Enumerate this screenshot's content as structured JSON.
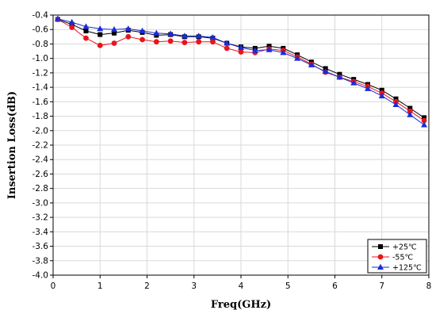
{
  "chart_data": {
    "type": "line",
    "xlabel": "Freq(GHz)",
    "ylabel": "Insertion Loss(dB)",
    "xlim": [
      0,
      8
    ],
    "ylim": [
      -4.0,
      -0.4
    ],
    "x_ticks": [
      "0",
      "1",
      "2",
      "3",
      "4",
      "5",
      "6",
      "7",
      "8"
    ],
    "y_ticks": [
      "-0.4",
      "-0.6",
      "-0.8",
      "-1.0",
      "-1.2",
      "-1.4",
      "-1.6",
      "-1.8",
      "-2.0",
      "-2.2",
      "-2.4",
      "-2.6",
      "-2.8",
      "-3.0",
      "-3.2",
      "-3.4",
      "-3.6",
      "-3.8",
      "-4.0"
    ],
    "grid": true,
    "legend_position": "bottom-right",
    "x": [
      0.1,
      0.4,
      0.7,
      1.0,
      1.3,
      1.6,
      1.9,
      2.2,
      2.5,
      2.8,
      3.1,
      3.4,
      3.7,
      4.0,
      4.3,
      4.6,
      4.9,
      5.2,
      5.5,
      5.8,
      6.1,
      6.4,
      6.7,
      7.0,
      7.3,
      7.6,
      7.9
    ],
    "series": [
      {
        "name": "+25℃",
        "color": "#000000",
        "marker": "square",
        "values": [
          -0.46,
          -0.53,
          -0.62,
          -0.67,
          -0.65,
          -0.61,
          -0.64,
          -0.68,
          -0.67,
          -0.7,
          -0.7,
          -0.72,
          -0.79,
          -0.84,
          -0.86,
          -0.83,
          -0.86,
          -0.95,
          -1.05,
          -1.14,
          -1.22,
          -1.29,
          -1.36,
          -1.44,
          -1.56,
          -1.69,
          -1.82
        ]
      },
      {
        "name": "-55℃",
        "color": "#e8141c",
        "marker": "circle",
        "values": [
          -0.46,
          -0.57,
          -0.72,
          -0.82,
          -0.79,
          -0.7,
          -0.74,
          -0.77,
          -0.76,
          -0.78,
          -0.77,
          -0.77,
          -0.86,
          -0.91,
          -0.92,
          -0.87,
          -0.89,
          -0.98,
          -1.08,
          -1.19,
          -1.26,
          -1.32,
          -1.39,
          -1.48,
          -1.6,
          -1.73,
          -1.86
        ]
      },
      {
        "name": "+125℃",
        "color": "#1c2bd8",
        "marker": "triangle",
        "values": [
          -0.45,
          -0.5,
          -0.56,
          -0.59,
          -0.6,
          -0.59,
          -0.62,
          -0.65,
          -0.66,
          -0.69,
          -0.69,
          -0.71,
          -0.79,
          -0.85,
          -0.89,
          -0.88,
          -0.92,
          -1.0,
          -1.09,
          -1.18,
          -1.26,
          -1.34,
          -1.42,
          -1.52,
          -1.64,
          -1.78,
          -1.92
        ]
      }
    ]
  }
}
